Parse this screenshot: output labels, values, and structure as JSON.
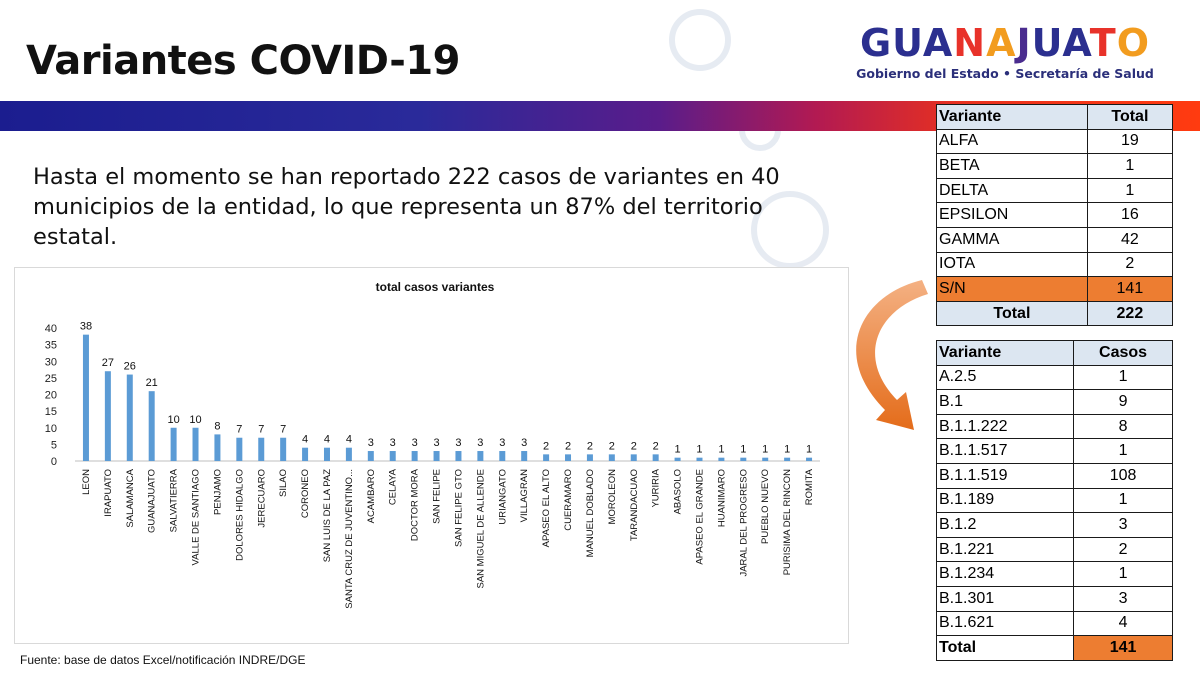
{
  "page": {
    "title": "Variantes COVID-19",
    "summary": "Hasta el momento se han reportado 222 casos de variantes en 40 municipios de la entidad, lo que representa un 87% del territorio estatal.",
    "source": "Fuente: base de datos Excel/notificación INDRE/DGE"
  },
  "logo": {
    "letters": [
      "G",
      "U",
      "A",
      "N",
      "A",
      "J",
      "U",
      "A",
      "T",
      "O"
    ],
    "letter_colors": [
      "#2b2f8f",
      "#2b2f8f",
      "#2b2f8f",
      "#e8322a",
      "#f29c1f",
      "#4a2c8f",
      "#2b2f8f",
      "#2b2f8f",
      "#e8322a",
      "#f29c1f"
    ],
    "subtitle": "Gobierno del Estado • Secretaría de Salud"
  },
  "colors": {
    "bar": "#5b9bd5",
    "highlight": "#ed7d31",
    "header_fill": "#dce6f1"
  },
  "chart_data": {
    "type": "bar",
    "title": "total casos variantes",
    "categories": [
      "LEON",
      "IRAPUATO",
      "SALAMANCA",
      "GUANAJUATO",
      "SALVATIERRA",
      "VALLE DE SANTIAGO",
      "PENJAMO",
      "DOLORES HIDALGO",
      "JERECUARO",
      "SILAO",
      "CORONEO",
      "SAN LUIS DE LA PAZ",
      "SANTA CRUZ DE JUVENTINO...",
      "ACAMBARO",
      "CELAYA",
      "DOCTOR MORA",
      "SAN FELIPE",
      "SAN FELIPE GTO",
      "SAN MIGUEL DE ALLENDE",
      "URIANGATO",
      "VILLAGRAN",
      "APASEO EL ALTO",
      "CUERAMARO",
      "MANUEL DOBLADO",
      "MOROLEON",
      "TARANDACUAO",
      "YURIRIA",
      "ABASOLO",
      "APASEO EL GRANDE",
      "HUANIMARO",
      "JARAL DEL PROGRESO",
      "PUEBLO NUEVO",
      "PURISIMA DEL RINCON",
      "ROMITA"
    ],
    "values": [
      38,
      27,
      26,
      21,
      10,
      10,
      8,
      7,
      7,
      7,
      4,
      4,
      4,
      3,
      3,
      3,
      3,
      3,
      3,
      3,
      3,
      2,
      2,
      2,
      2,
      2,
      2,
      1,
      1,
      1,
      1,
      1,
      1,
      1
    ],
    "ylim": [
      0,
      40
    ],
    "yticks": [
      0,
      5,
      10,
      15,
      20,
      25,
      30,
      35,
      40
    ],
    "grid": false,
    "legend": "none"
  },
  "variant_table": {
    "headers": [
      "Variante",
      "Total"
    ],
    "rows": [
      {
        "name": "ALFA",
        "value": "19"
      },
      {
        "name": "BETA",
        "value": "1"
      },
      {
        "name": "DELTA",
        "value": "1"
      },
      {
        "name": "EPSILON",
        "value": "16"
      },
      {
        "name": "GAMMA",
        "value": "42"
      },
      {
        "name": "IOTA",
        "value": "2"
      },
      {
        "name": "S/N",
        "value": "141"
      }
    ],
    "total_label": "Total",
    "total_value": "222"
  },
  "lineage_table": {
    "headers": [
      "Variante",
      "Casos"
    ],
    "rows": [
      {
        "name": "A.2.5",
        "value": "1"
      },
      {
        "name": "B.1",
        "value": "9"
      },
      {
        "name": "B.1.1.222",
        "value": "8"
      },
      {
        "name": "B.1.1.517",
        "value": "1"
      },
      {
        "name": "B.1.1.519",
        "value": "108"
      },
      {
        "name": "B.1.189",
        "value": "1"
      },
      {
        "name": "B.1.2",
        "value": "3"
      },
      {
        "name": "B.1.221",
        "value": "2"
      },
      {
        "name": "B.1.234",
        "value": "1"
      },
      {
        "name": "B.1.301",
        "value": "3"
      },
      {
        "name": "B.1.621",
        "value": "4"
      }
    ],
    "total_label": "Total",
    "total_value": "141"
  }
}
